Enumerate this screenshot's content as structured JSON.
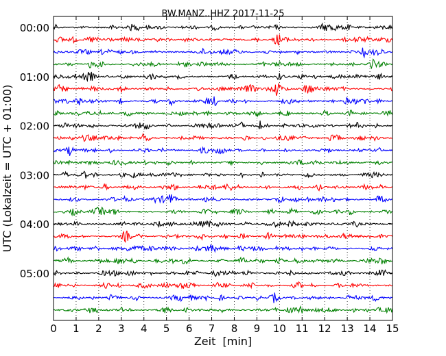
{
  "chart_data": {
    "type": "line",
    "title": "BW.MANZ..HHZ 2017-11-25",
    "xlabel": "Zeit  [min]",
    "ylabel": "UTC (Lokalzeit = UTC + 01:00)",
    "xlim": [
      0,
      15
    ],
    "x_ticks": [
      "0",
      "1",
      "2",
      "3",
      "4",
      "5",
      "6",
      "7",
      "8",
      "9",
      "10",
      "11",
      "12",
      "13",
      "14",
      "15"
    ],
    "y_tick_labels": [
      "00:00",
      "01:00",
      "02:00",
      "03:00",
      "04:00",
      "05:00"
    ],
    "trace_count": 24,
    "trace_interval_minutes": 15,
    "trace_colors": [
      "#000000",
      "#ff0000",
      "#0000ff",
      "#008000"
    ],
    "grid": "vertical dotted at every minute"
  }
}
